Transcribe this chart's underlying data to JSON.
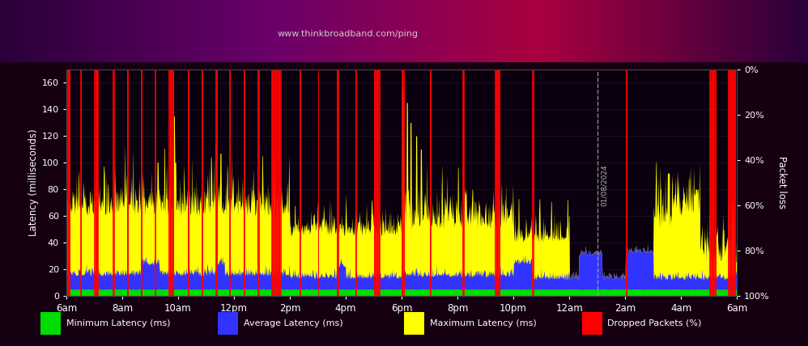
{
  "title_top": "www.thinkbroadband.com/ping",
  "background_color": "#150012",
  "plot_bg_color": "#0a000f",
  "ylabel_left": "Latency (milliseconds)",
  "ylabel_right": "Packet loss",
  "ylim_left": [
    0,
    170
  ],
  "yticks_left": [
    0,
    20,
    40,
    60,
    80,
    100,
    120,
    140,
    160
  ],
  "xtick_labels": [
    "6am",
    "8am",
    "10am",
    "12pm",
    "2pm",
    "4pm",
    "6pm",
    "8pm",
    "10pm",
    "12am",
    "2am",
    "4am",
    "6am"
  ],
  "dashed_line_x": 9.5,
  "dashed_line_label": "01/08/2024",
  "color_min": "#00dd00",
  "color_avg": "#3333ff",
  "color_max": "#ffff00",
  "color_drop": "#ff0000",
  "color_text": "#ffffff",
  "legend_items": [
    {
      "label": "Minimum Latency (ms)",
      "color": "#00dd00"
    },
    {
      "label": "Average Latency (ms)",
      "color": "#3333ff"
    },
    {
      "label": "Maximum Latency (ms)",
      "color": "#ffff00"
    },
    {
      "label": "Dropped Packets (%)",
      "color": "#ff0000"
    }
  ],
  "figsize": [
    9.98,
    4.28
  ],
  "dpi": 100
}
